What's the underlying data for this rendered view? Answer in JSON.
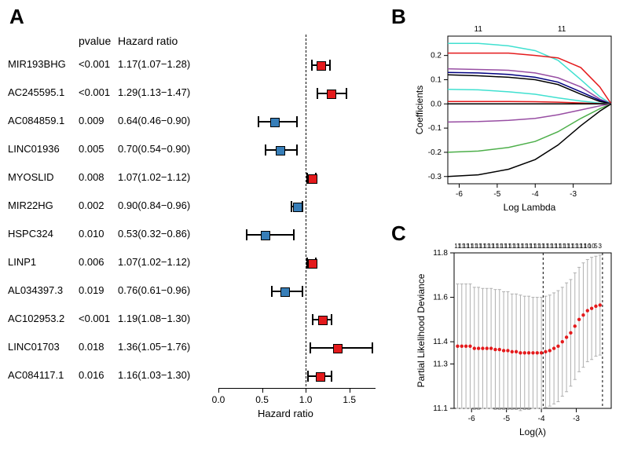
{
  "panelA": {
    "label": "A",
    "headers": {
      "pvalue": "pvalue",
      "hr": "Hazard ratio"
    },
    "xaxis_title": "Hazard ratio",
    "xticks": [
      0.0,
      0.5,
      1.0,
      1.5
    ],
    "xlim": [
      0.0,
      1.8
    ],
    "ref_x": 1.0,
    "fontsize_label": 14,
    "fontsize_row": 13,
    "colors": {
      "hr_gt1": "#e41a1c",
      "hr_lt1": "#377eb8",
      "line": "#000000"
    },
    "rows": [
      {
        "name": "MIR193BHG",
        "pvalue": "<0.001",
        "hr_text": "1.17(1.07−1.28)",
        "hr": 1.17,
        "lo": 1.07,
        "hi": 1.28
      },
      {
        "name": "AC245595.1",
        "pvalue": "<0.001",
        "hr_text": "1.29(1.13−1.47)",
        "hr": 1.29,
        "lo": 1.13,
        "hi": 1.47
      },
      {
        "name": "AC084859.1",
        "pvalue": "0.009",
        "hr_text": "0.64(0.46−0.90)",
        "hr": 0.64,
        "lo": 0.46,
        "hi": 0.9
      },
      {
        "name": "LINC01936",
        "pvalue": "0.005",
        "hr_text": "0.70(0.54−0.90)",
        "hr": 0.7,
        "lo": 0.54,
        "hi": 0.9
      },
      {
        "name": "MYOSLID",
        "pvalue": "0.008",
        "hr_text": "1.07(1.02−1.12)",
        "hr": 1.07,
        "lo": 1.02,
        "hi": 1.12
      },
      {
        "name": "MIR22HG",
        "pvalue": "0.002",
        "hr_text": "0.90(0.84−0.96)",
        "hr": 0.9,
        "lo": 0.84,
        "hi": 0.96
      },
      {
        "name": "HSPC324",
        "pvalue": "0.010",
        "hr_text": "0.53(0.32−0.86)",
        "hr": 0.53,
        "lo": 0.32,
        "hi": 0.86
      },
      {
        "name": "LINP1",
        "pvalue": "0.006",
        "hr_text": "1.07(1.02−1.12)",
        "hr": 1.07,
        "lo": 1.02,
        "hi": 1.12
      },
      {
        "name": "AL034397.3",
        "pvalue": "0.019",
        "hr_text": "0.76(0.61−0.96)",
        "hr": 0.76,
        "lo": 0.61,
        "hi": 0.96
      },
      {
        "name": "AC102953.2",
        "pvalue": "<0.001",
        "hr_text": "1.19(1.08−1.30)",
        "hr": 1.19,
        "lo": 1.08,
        "hi": 1.3
      },
      {
        "name": "LINC01703",
        "pvalue": "0.018",
        "hr_text": "1.36(1.05−1.76)",
        "hr": 1.36,
        "lo": 1.05,
        "hi": 1.76
      },
      {
        "name": "AC084117.1",
        "pvalue": "0.016",
        "hr_text": "1.16(1.03−1.30)",
        "hr": 1.16,
        "lo": 1.03,
        "hi": 1.3
      }
    ]
  },
  "panelB": {
    "label": "B",
    "xlabel": "Log Lambda",
    "ylabel": "Coefficients",
    "xlim": [
      -6.3,
      -2.0
    ],
    "ylim": [
      -0.33,
      0.28
    ],
    "xticks": [
      -6,
      -5,
      -4,
      -3
    ],
    "yticks": [
      -0.3,
      -0.2,
      -0.1,
      0.0,
      0.1,
      0.2
    ],
    "top_counts": [
      "11",
      "11"
    ],
    "top_count_positions": [
      -5.5,
      -3.3
    ],
    "label_fontsize": 12,
    "tick_fontsize": 10,
    "box_color": "#000000",
    "background": "#ffffff",
    "line_width": 1.5,
    "series": [
      {
        "color": "#40e0d0",
        "pts": [
          [
            -6.3,
            0.25
          ],
          [
            -5.5,
            0.25
          ],
          [
            -4.7,
            0.24
          ],
          [
            -4.0,
            0.22
          ],
          [
            -3.4,
            0.18
          ],
          [
            -2.8,
            0.1
          ],
          [
            -2.3,
            0.03
          ],
          [
            -2.0,
            0.0
          ]
        ]
      },
      {
        "color": "#e41a1c",
        "pts": [
          [
            -6.3,
            0.21
          ],
          [
            -5.5,
            0.21
          ],
          [
            -4.7,
            0.21
          ],
          [
            -4.0,
            0.2
          ],
          [
            -3.4,
            0.19
          ],
          [
            -2.8,
            0.15
          ],
          [
            -2.3,
            0.07
          ],
          [
            -2.0,
            0.0
          ]
        ]
      },
      {
        "color": "#984ea3",
        "pts": [
          [
            -6.3,
            0.145
          ],
          [
            -5.5,
            0.142
          ],
          [
            -4.7,
            0.139
          ],
          [
            -4.0,
            0.128
          ],
          [
            -3.4,
            0.108
          ],
          [
            -2.8,
            0.07
          ],
          [
            -2.3,
            0.02
          ],
          [
            -2.0,
            0.0
          ]
        ]
      },
      {
        "color": "#000080",
        "pts": [
          [
            -6.3,
            0.13
          ],
          [
            -5.5,
            0.128
          ],
          [
            -4.7,
            0.122
          ],
          [
            -4.0,
            0.11
          ],
          [
            -3.4,
            0.09
          ],
          [
            -2.8,
            0.05
          ],
          [
            -2.3,
            0.015
          ],
          [
            -2.0,
            0.0
          ]
        ]
      },
      {
        "color": "#000000",
        "pts": [
          [
            -6.3,
            0.12
          ],
          [
            -5.5,
            0.116
          ],
          [
            -4.7,
            0.11
          ],
          [
            -4.0,
            0.1
          ],
          [
            -3.4,
            0.08
          ],
          [
            -2.8,
            0.04
          ],
          [
            -2.3,
            0.01
          ],
          [
            -2.0,
            0.0
          ]
        ]
      },
      {
        "color": "#40e0d0",
        "pts": [
          [
            -6.3,
            0.06
          ],
          [
            -5.5,
            0.058
          ],
          [
            -4.7,
            0.05
          ],
          [
            -4.0,
            0.04
          ],
          [
            -3.4,
            0.025
          ],
          [
            -2.8,
            0.012
          ],
          [
            -2.3,
            0.003
          ],
          [
            -2.0,
            0.0
          ]
        ]
      },
      {
        "color": "#e41a1c",
        "pts": [
          [
            -6.3,
            0.01
          ],
          [
            -5.5,
            0.01
          ],
          [
            -4.7,
            0.01
          ],
          [
            -4.0,
            0.009
          ],
          [
            -3.4,
            0.007
          ],
          [
            -2.8,
            0.004
          ],
          [
            -2.3,
            0.001
          ],
          [
            -2.0,
            0.0
          ]
        ]
      },
      {
        "color": "#000000",
        "pts": [
          [
            -6.3,
            0.0
          ],
          [
            -2.0,
            0.0
          ]
        ]
      },
      {
        "color": "#984ea3",
        "pts": [
          [
            -6.3,
            -0.075
          ],
          [
            -5.5,
            -0.073
          ],
          [
            -4.7,
            -0.068
          ],
          [
            -4.0,
            -0.06
          ],
          [
            -3.4,
            -0.045
          ],
          [
            -2.8,
            -0.025
          ],
          [
            -2.3,
            -0.008
          ],
          [
            -2.0,
            0.0
          ]
        ]
      },
      {
        "color": "#4daf4a",
        "pts": [
          [
            -6.3,
            -0.2
          ],
          [
            -5.5,
            -0.195
          ],
          [
            -4.7,
            -0.18
          ],
          [
            -4.0,
            -0.155
          ],
          [
            -3.4,
            -0.115
          ],
          [
            -2.8,
            -0.06
          ],
          [
            -2.3,
            -0.02
          ],
          [
            -2.0,
            0.0
          ]
        ]
      },
      {
        "color": "#000000",
        "pts": [
          [
            -6.3,
            -0.3
          ],
          [
            -5.5,
            -0.293
          ],
          [
            -4.7,
            -0.27
          ],
          [
            -4.0,
            -0.23
          ],
          [
            -3.4,
            -0.17
          ],
          [
            -2.8,
            -0.09
          ],
          [
            -2.3,
            -0.03
          ],
          [
            -2.0,
            0.0
          ]
        ]
      }
    ]
  },
  "panelC": {
    "label": "C",
    "xlabel": "Log(λ)",
    "ylabel": "Partial Likelihood Deviance",
    "xlim": [
      -6.5,
      -2.0
    ],
    "ylim": [
      11.1,
      11.8
    ],
    "xticks": [
      -6,
      -5,
      -4,
      -3
    ],
    "yticks": [
      11.1,
      11.3,
      11.4,
      11.6,
      11.8
    ],
    "top_counts": [
      "11",
      "11",
      "11",
      "11",
      "11",
      "11",
      "11",
      "11",
      "11",
      "11",
      "11",
      "11",
      "11",
      "11",
      "11",
      "11",
      "11",
      "11",
      "11",
      "11",
      "11",
      "11",
      "11",
      "11",
      "11",
      "11",
      "11",
      "11",
      "11",
      "11",
      "11",
      "10",
      "10",
      "5",
      "3"
    ],
    "vlines": [
      -3.95,
      -2.25
    ],
    "vline_style": "dashed",
    "background": "#ffffff",
    "box_color": "#000000",
    "point_color": "#e41a1c",
    "err_color": "#b0b0b0",
    "label_fontsize": 12,
    "tick_fontsize": 10,
    "point_radius": 2.2,
    "err_width": 1,
    "points": [
      {
        "x": -6.4,
        "y": 11.38,
        "e": 0.28
      },
      {
        "x": -6.28,
        "y": 11.38,
        "e": 0.28
      },
      {
        "x": -6.16,
        "y": 11.38,
        "e": 0.28
      },
      {
        "x": -6.04,
        "y": 11.38,
        "e": 0.28
      },
      {
        "x": -5.92,
        "y": 11.37,
        "e": 0.275
      },
      {
        "x": -5.8,
        "y": 11.37,
        "e": 0.275
      },
      {
        "x": -5.68,
        "y": 11.37,
        "e": 0.27
      },
      {
        "x": -5.56,
        "y": 11.37,
        "e": 0.27
      },
      {
        "x": -5.44,
        "y": 11.37,
        "e": 0.27
      },
      {
        "x": -5.32,
        "y": 11.365,
        "e": 0.27
      },
      {
        "x": -5.2,
        "y": 11.365,
        "e": 0.27
      },
      {
        "x": -5.08,
        "y": 11.36,
        "e": 0.265
      },
      {
        "x": -4.96,
        "y": 11.36,
        "e": 0.265
      },
      {
        "x": -4.84,
        "y": 11.355,
        "e": 0.26
      },
      {
        "x": -4.72,
        "y": 11.355,
        "e": 0.26
      },
      {
        "x": -4.6,
        "y": 11.35,
        "e": 0.26
      },
      {
        "x": -4.48,
        "y": 11.35,
        "e": 0.255
      },
      {
        "x": -4.36,
        "y": 11.35,
        "e": 0.255
      },
      {
        "x": -4.24,
        "y": 11.35,
        "e": 0.25
      },
      {
        "x": -4.12,
        "y": 11.35,
        "e": 0.25
      },
      {
        "x": -4.0,
        "y": 11.35,
        "e": 0.25
      },
      {
        "x": -3.88,
        "y": 11.355,
        "e": 0.25
      },
      {
        "x": -3.76,
        "y": 11.36,
        "e": 0.25
      },
      {
        "x": -3.64,
        "y": 11.37,
        "e": 0.25
      },
      {
        "x": -3.52,
        "y": 11.38,
        "e": 0.25
      },
      {
        "x": -3.4,
        "y": 11.4,
        "e": 0.245
      },
      {
        "x": -3.28,
        "y": 11.42,
        "e": 0.245
      },
      {
        "x": -3.16,
        "y": 11.44,
        "e": 0.24
      },
      {
        "x": -3.04,
        "y": 11.47,
        "e": 0.24
      },
      {
        "x": -2.92,
        "y": 11.5,
        "e": 0.235
      },
      {
        "x": -2.8,
        "y": 11.52,
        "e": 0.235
      },
      {
        "x": -2.68,
        "y": 11.54,
        "e": 0.23
      },
      {
        "x": -2.56,
        "y": 11.55,
        "e": 0.23
      },
      {
        "x": -2.44,
        "y": 11.56,
        "e": 0.225
      },
      {
        "x": -2.32,
        "y": 11.565,
        "e": 0.225
      }
    ]
  }
}
